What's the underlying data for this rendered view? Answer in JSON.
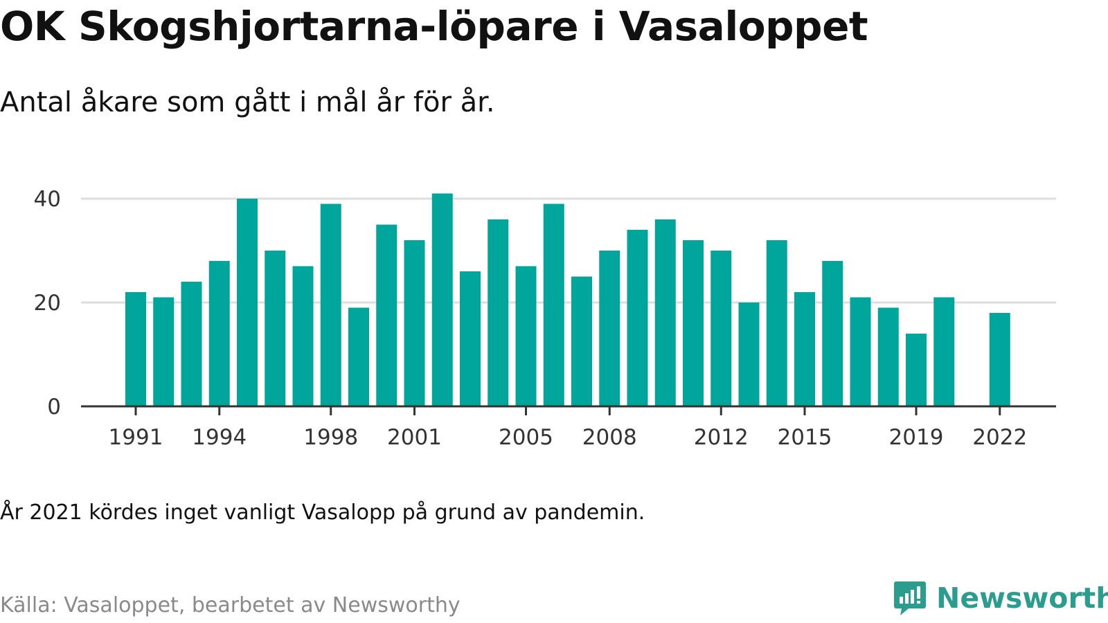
{
  "title": "OK Skogshjortarna-löpare i Vasaloppet",
  "subtitle": "Antal åkare som gått i mål år för år.",
  "note": "År 2021 kördes inget vanligt Vasalopp på grund av pandemin.",
  "source": "Källa: Vasaloppet, bearbetet av Newsworthy",
  "logo": {
    "text": "Newsworthy",
    "icon": "newsworthy-logo-icon"
  },
  "colors": {
    "bar": "#00a59b",
    "grid": "#dddddd",
    "axis": "#333333",
    "logo": "#2a9d8f"
  },
  "chart_data": {
    "type": "bar",
    "x": [
      1991,
      1992,
      1993,
      1994,
      1995,
      1996,
      1997,
      1998,
      1999,
      2000,
      2001,
      2002,
      2003,
      2004,
      2005,
      2006,
      2007,
      2008,
      2009,
      2010,
      2011,
      2012,
      2013,
      2014,
      2015,
      2016,
      2017,
      2018,
      2019,
      2020,
      2021,
      2022
    ],
    "values": [
      22,
      21,
      24,
      28,
      40,
      30,
      27,
      39,
      19,
      35,
      32,
      41,
      26,
      36,
      27,
      39,
      25,
      30,
      34,
      36,
      32,
      30,
      20,
      32,
      22,
      28,
      21,
      19,
      14,
      21,
      null,
      18
    ],
    "x_tick_labels": [
      "1991",
      "1994",
      "1998",
      "2001",
      "2005",
      "2008",
      "2012",
      "2015",
      "2019",
      "2022"
    ],
    "y_ticks": [
      0,
      20,
      40
    ],
    "ylim": [
      0,
      40
    ],
    "grid": true
  }
}
